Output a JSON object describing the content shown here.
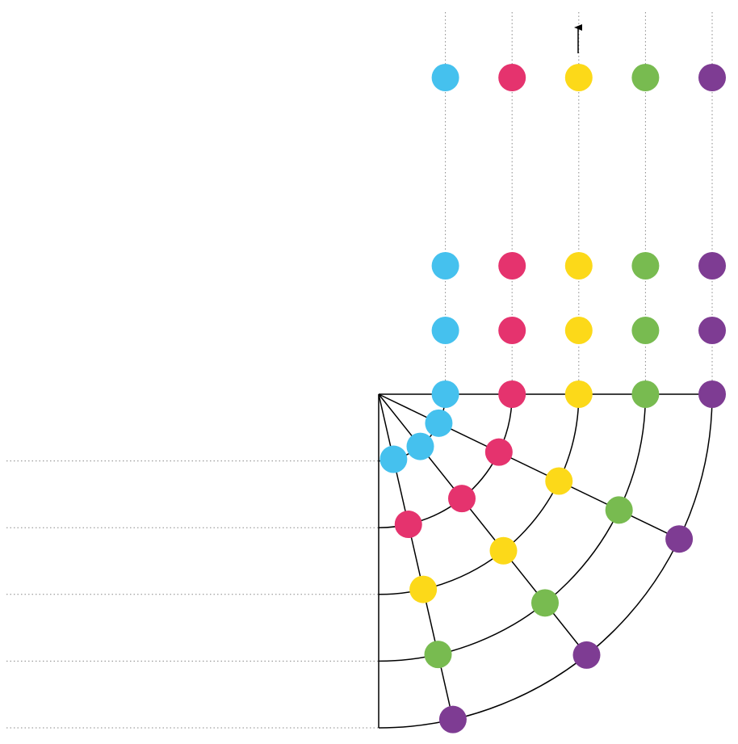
{
  "colors": [
    "#45c1ee",
    "#e5336e",
    "#fcd919",
    "#78bb50",
    "#7e3c93"
  ]
}
